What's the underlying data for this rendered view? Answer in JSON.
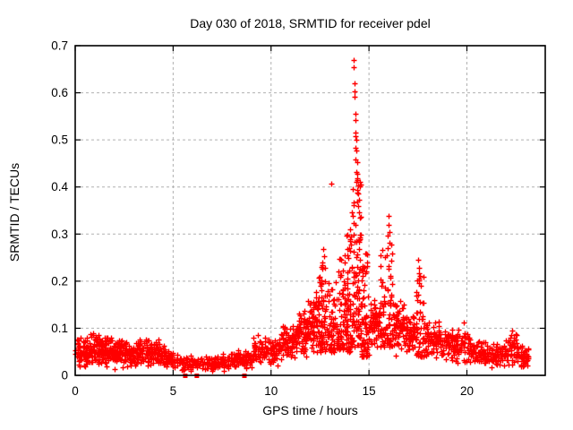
{
  "chart_data": {
    "type": "scatter",
    "title": "Day 030 of 2018, SRMTID for receiver pdel",
    "xlabel": "GPS time / hours",
    "ylabel": "SRMTID / TECUs",
    "xlim": [
      0,
      24
    ],
    "ylim": [
      0,
      0.7
    ],
    "xticks": [
      0,
      5,
      10,
      15,
      20
    ],
    "yticks": [
      0,
      0.1,
      0.2,
      0.3,
      0.4,
      0.5,
      0.6,
      0.7
    ],
    "grid": {
      "show": true,
      "color": "#b0b0b0",
      "dash": [
        3,
        3
      ]
    },
    "border_color": "#000000",
    "marker": {
      "shape": "plus",
      "color": "#ff0000",
      "size": 7
    },
    "legend": "none",
    "point_cloud_segments": [
      [
        0.0,
        0.6,
        70,
        0.01,
        0.085,
        "tri"
      ],
      [
        0.6,
        1.2,
        75,
        0.015,
        0.095,
        "tri"
      ],
      [
        1.2,
        1.9,
        85,
        0.015,
        0.09,
        "tri"
      ],
      [
        1.9,
        2.5,
        70,
        0.01,
        0.08,
        "tri"
      ],
      [
        2.5,
        3.2,
        70,
        0.015,
        0.075,
        "tri"
      ],
      [
        3.2,
        4.0,
        75,
        0.015,
        0.085,
        "tri"
      ],
      [
        4.0,
        4.6,
        60,
        0.015,
        0.08,
        "tri"
      ],
      [
        4.6,
        5.2,
        45,
        0.01,
        0.055,
        "tri"
      ],
      [
        5.2,
        5.9,
        35,
        0.008,
        0.045,
        "tri"
      ],
      [
        5.9,
        6.6,
        35,
        0.008,
        0.04,
        "tri"
      ],
      [
        6.6,
        7.4,
        50,
        0.008,
        0.042,
        "tri"
      ],
      [
        7.4,
        8.3,
        60,
        0.01,
        0.05,
        "tri"
      ],
      [
        8.3,
        9.1,
        55,
        0.012,
        0.06,
        "tri"
      ],
      [
        9.1,
        9.8,
        55,
        0.02,
        0.09,
        "tri"
      ],
      [
        9.8,
        10.5,
        60,
        0.02,
        0.085,
        "tri"
      ],
      [
        10.5,
        11.2,
        70,
        0.03,
        0.115,
        "tri"
      ],
      [
        11.2,
        11.9,
        85,
        0.035,
        0.145,
        "tri"
      ],
      [
        11.9,
        12.45,
        75,
        0.045,
        0.185,
        "tri"
      ],
      [
        12.45,
        12.85,
        60,
        0.05,
        0.24,
        "low"
      ],
      [
        12.85,
        13.35,
        65,
        0.05,
        0.2,
        "low"
      ],
      [
        13.35,
        13.75,
        60,
        0.055,
        0.25,
        "low"
      ],
      [
        13.75,
        14.1,
        70,
        0.05,
        0.3,
        "low"
      ],
      [
        14.1,
        14.6,
        95,
        0.06,
        0.42,
        "low"
      ],
      [
        14.6,
        15.0,
        70,
        0.04,
        0.26,
        "low"
      ],
      [
        15.0,
        15.55,
        65,
        0.05,
        0.17,
        "tri"
      ],
      [
        15.55,
        16.2,
        85,
        0.06,
        0.29,
        "low"
      ],
      [
        16.2,
        16.85,
        70,
        0.04,
        0.17,
        "tri"
      ],
      [
        16.85,
        17.4,
        60,
        0.035,
        0.13,
        "tri"
      ],
      [
        17.4,
        17.8,
        55,
        0.04,
        0.22,
        "low"
      ],
      [
        17.8,
        18.6,
        75,
        0.03,
        0.125,
        "tri"
      ],
      [
        18.6,
        19.4,
        65,
        0.025,
        0.1,
        "tri"
      ],
      [
        19.4,
        20.2,
        60,
        0.02,
        0.105,
        "tri"
      ],
      [
        20.2,
        21.0,
        60,
        0.018,
        0.075,
        "tri"
      ],
      [
        21.0,
        21.8,
        58,
        0.015,
        0.07,
        "tri"
      ],
      [
        21.8,
        22.6,
        65,
        0.018,
        0.09,
        "tri"
      ],
      [
        22.6,
        23.15,
        50,
        0.015,
        0.065,
        "tri"
      ]
    ],
    "peak_points": [
      [
        14.22,
        0.669
      ],
      [
        14.23,
        0.655
      ],
      [
        14.25,
        0.621
      ],
      [
        14.28,
        0.603
      ],
      [
        14.26,
        0.592
      ],
      [
        14.3,
        0.555
      ],
      [
        14.33,
        0.543
      ],
      [
        14.3,
        0.516
      ],
      [
        14.32,
        0.507
      ],
      [
        14.34,
        0.5
      ],
      [
        14.31,
        0.484
      ],
      [
        14.36,
        0.478
      ],
      [
        14.33,
        0.458
      ],
      [
        14.39,
        0.452
      ],
      [
        14.36,
        0.432
      ],
      [
        14.42,
        0.428
      ],
      [
        14.38,
        0.415
      ],
      [
        13.07,
        0.408
      ],
      [
        14.44,
        0.403
      ],
      [
        14.4,
        0.394
      ],
      [
        14.43,
        0.386
      ],
      [
        14.48,
        0.372
      ],
      [
        14.45,
        0.36
      ],
      [
        14.5,
        0.347
      ],
      [
        14.52,
        0.335
      ],
      [
        14.05,
        0.31
      ],
      [
        14.08,
        0.295
      ],
      [
        15.98,
        0.338
      ],
      [
        16.0,
        0.32
      ],
      [
        16.03,
        0.305
      ],
      [
        15.96,
        0.296
      ],
      [
        12.66,
        0.268
      ],
      [
        12.7,
        0.253
      ],
      [
        12.6,
        0.24
      ],
      [
        13.5,
        0.247
      ],
      [
        17.52,
        0.245
      ],
      [
        17.55,
        0.228
      ],
      [
        19.85,
        0.112
      ],
      [
        22.3,
        0.095
      ]
    ],
    "zero_marker_squares": [
      5.62,
      6.21,
      8.64
    ]
  }
}
